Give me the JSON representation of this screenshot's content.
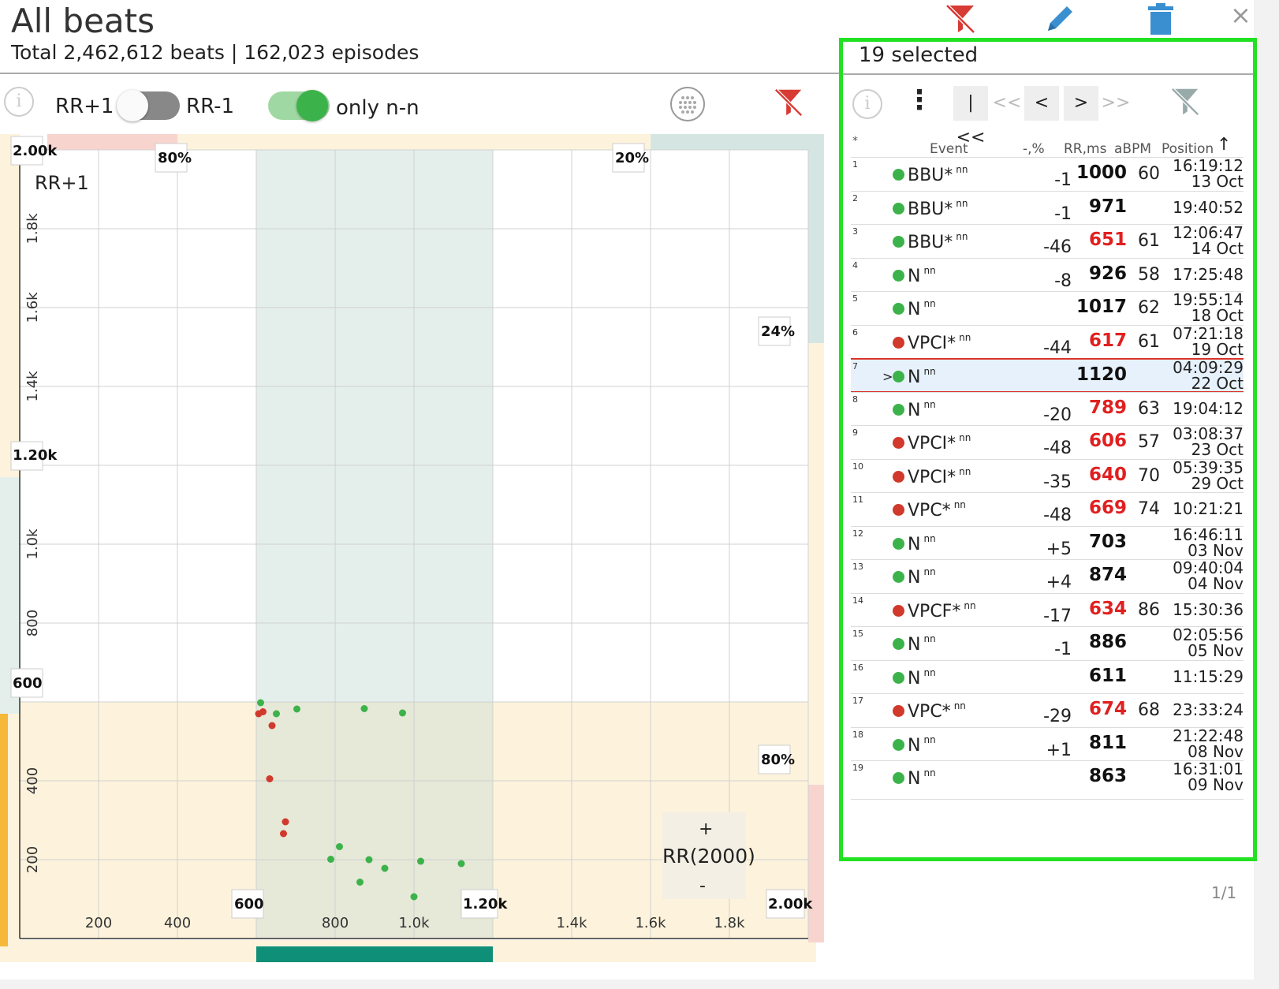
{
  "header": {
    "title": "All beats",
    "subtitle": "Total 2,462,612 beats | 162,023 episodes",
    "icons": [
      "filter-off-icon",
      "pencil-icon",
      "trash-icon",
      "close-icon"
    ],
    "close_label": "×"
  },
  "controls": {
    "info_label": "i",
    "rr_plus_label": "RR+1",
    "rr_minus_label": "RR-1",
    "rr_toggle_on": false,
    "only_nn_label": "only n-n",
    "only_nn_on": true
  },
  "chart_data": {
    "type": "scatter",
    "ylabel": "RR+1",
    "xlabel": "RR(2000)",
    "xlim": [
      0,
      2000
    ],
    "ylim": [
      0,
      2000
    ],
    "x_ticks": [
      "200",
      "400",
      "800",
      "1.0k",
      "1.4k",
      "1.6k",
      "1.8k"
    ],
    "y_ticks": [
      "200",
      "400",
      "800",
      "1.0k",
      "1.4k",
      "1.6k",
      "1.8k"
    ],
    "x_box_labels": [
      "600",
      "1.20k",
      "2.00k"
    ],
    "y_box_labels": [
      "2.00k",
      "1.20k",
      "600"
    ],
    "pct_labels": {
      "top_left": "80%",
      "top_right": "20%",
      "right_upper": "24%",
      "right_lower": "80%"
    },
    "zoom_plus": "+",
    "zoom_minus": "-",
    "colors": {
      "normal": "#3cb34a",
      "ectopic": "#d0392b",
      "band_green": "#e4efec",
      "band_yellow": "#fdf3dc",
      "band_red": "#f8d4cf",
      "axis_teal": "#0f8f78",
      "axis_orange": "#f5b838"
    },
    "series": [
      {
        "name": "",
        "color": "#3cb34a",
        "points": [
          [
            611,
            598
          ],
          [
            651,
            570
          ],
          [
            703,
            582
          ],
          [
            874,
            583
          ],
          [
            971,
            572
          ],
          [
            811,
            233
          ],
          [
            789,
            201
          ],
          [
            886,
            200
          ],
          [
            926,
            178
          ],
          [
            863,
            143
          ],
          [
            1017,
            196
          ],
          [
            1120,
            190
          ],
          [
            1000,
            106
          ]
        ]
      },
      {
        "name": "",
        "color": "#d0392b",
        "points": [
          [
            617,
            575
          ],
          [
            606,
            570
          ],
          [
            640,
            540
          ],
          [
            634,
            405
          ],
          [
            674,
            296
          ],
          [
            669,
            266
          ]
        ]
      }
    ]
  },
  "panel": {
    "selected_label": "19 selected",
    "info_label": "i",
    "menu_label": "⋮",
    "nav": [
      "|<<",
      "<<",
      "<",
      ">",
      ">>"
    ],
    "columns": {
      "marker": "*",
      "event": "Event",
      "pct": "-,%",
      "rr": "RR,ms",
      "bpm": "aBPM",
      "position": "Position"
    },
    "rows": [
      {
        "idx": "1",
        "event": "BBU*",
        "tag": "nn",
        "status": "normal",
        "pct": "-1",
        "rr": "1000",
        "rr_color": "#111",
        "bpm": "60",
        "time": "16:19:12",
        "date": "13 Oct"
      },
      {
        "idx": "2",
        "event": "BBU*",
        "tag": "nn",
        "status": "normal",
        "pct": "-1",
        "rr": "971",
        "rr_color": "#111",
        "bpm": "",
        "time": "19:40:52",
        "date": ""
      },
      {
        "idx": "3",
        "event": "BBU*",
        "tag": "nn",
        "status": "normal",
        "pct": "-46",
        "rr": "651",
        "rr_color": "#e02020",
        "bpm": "61",
        "time": "12:06:47",
        "date": "14 Oct"
      },
      {
        "idx": "4",
        "event": "N",
        "tag": "nn",
        "status": "normal",
        "pct": "-8",
        "rr": "926",
        "rr_color": "#111",
        "bpm": "58",
        "time": "17:25:48",
        "date": ""
      },
      {
        "idx": "5",
        "event": "N",
        "tag": "nn",
        "status": "normal",
        "pct": "",
        "rr": "1017",
        "rr_color": "#111",
        "bpm": "62",
        "time": "19:55:14",
        "date": "18 Oct"
      },
      {
        "idx": "6",
        "event": "VPCI*",
        "tag": "nn",
        "status": "ectopic",
        "pct": "-44",
        "rr": "617",
        "rr_color": "#e02020",
        "bpm": "61",
        "time": "07:21:18",
        "date": "19 Oct"
      },
      {
        "idx": "7",
        "event": "N",
        "tag": "nn",
        "status": "normal",
        "pct": "",
        "rr": "1120",
        "rr_color": "#111",
        "bpm": "",
        "time": "04:09:29",
        "date": "22 Oct",
        "active": true
      },
      {
        "idx": "8",
        "event": "N",
        "tag": "nn",
        "status": "normal",
        "pct": "-20",
        "rr": "789",
        "rr_color": "#e02020",
        "bpm": "63",
        "time": "19:04:12",
        "date": ""
      },
      {
        "idx": "9",
        "event": "VPCI*",
        "tag": "nn",
        "status": "ectopic",
        "pct": "-48",
        "rr": "606",
        "rr_color": "#e02020",
        "bpm": "57",
        "time": "03:08:37",
        "date": "23 Oct"
      },
      {
        "idx": "10",
        "event": "VPCI*",
        "tag": "nn",
        "status": "ectopic",
        "pct": "-35",
        "rr": "640",
        "rr_color": "#e02020",
        "bpm": "70",
        "time": "05:39:35",
        "date": "29 Oct"
      },
      {
        "idx": "11",
        "event": "VPC*",
        "tag": "nn",
        "status": "ectopic",
        "pct": "-48",
        "rr": "669",
        "rr_color": "#e02020",
        "bpm": "74",
        "time": "10:21:21",
        "date": ""
      },
      {
        "idx": "12",
        "event": "N",
        "tag": "nn",
        "status": "normal",
        "pct": "+5",
        "rr": "703",
        "rr_color": "#111",
        "bpm": "",
        "time": "16:46:11",
        "date": "03 Nov"
      },
      {
        "idx": "13",
        "event": "N",
        "tag": "nn",
        "status": "normal",
        "pct": "+4",
        "rr": "874",
        "rr_color": "#111",
        "bpm": "",
        "time": "09:40:04",
        "date": "04 Nov"
      },
      {
        "idx": "14",
        "event": "VPCF*",
        "tag": "nn",
        "status": "ectopic",
        "pct": "-17",
        "rr": "634",
        "rr_color": "#e02020",
        "bpm": "86",
        "time": "15:30:36",
        "date": ""
      },
      {
        "idx": "15",
        "event": "N",
        "tag": "nn",
        "status": "normal",
        "pct": "-1",
        "rr": "886",
        "rr_color": "#111",
        "bpm": "",
        "time": "02:05:56",
        "date": "05 Nov"
      },
      {
        "idx": "16",
        "event": "N",
        "tag": "nn",
        "status": "normal",
        "pct": "",
        "rr": "611",
        "rr_color": "#111",
        "bpm": "",
        "time": "11:15:29",
        "date": ""
      },
      {
        "idx": "17",
        "event": "VPC*",
        "tag": "nn",
        "status": "ectopic",
        "pct": "-29",
        "rr": "674",
        "rr_color": "#e02020",
        "bpm": "68",
        "time": "23:33:24",
        "date": ""
      },
      {
        "idx": "18",
        "event": "N",
        "tag": "nn",
        "status": "normal",
        "pct": "+1",
        "rr": "811",
        "rr_color": "#111",
        "bpm": "",
        "time": "21:22:48",
        "date": "08 Nov"
      },
      {
        "idx": "19",
        "event": "N",
        "tag": "nn",
        "status": "normal",
        "pct": "",
        "rr": "863",
        "rr_color": "#111",
        "bpm": "",
        "time": "16:31:01",
        "date": "09 Nov"
      }
    ],
    "pager": "1/1"
  }
}
